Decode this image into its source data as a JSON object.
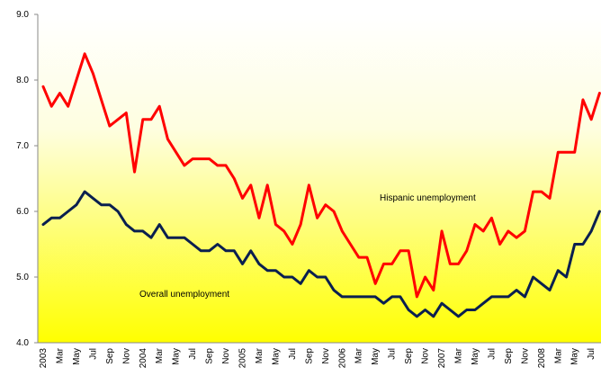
{
  "chart_data": {
    "type": "line",
    "categories": [
      "2003",
      null,
      "Mar",
      null,
      "May",
      null,
      "Jul",
      null,
      "Sep",
      null,
      "Nov",
      null,
      "2004",
      null,
      "Mar",
      null,
      "May",
      null,
      "Jul",
      null,
      "Sep",
      null,
      "Nov",
      null,
      "2005",
      null,
      "Mar",
      null,
      "May",
      null,
      "Jul",
      null,
      "Sep",
      null,
      "Nov",
      null,
      "2006",
      null,
      "Mar",
      null,
      "May",
      null,
      "Jul",
      null,
      "Sep",
      null,
      "Nov",
      null,
      "2007",
      null,
      "Mar",
      null,
      "May",
      null,
      "Jul",
      null,
      "Sep",
      null,
      "Nov",
      null,
      "2008",
      null,
      "Mar",
      null,
      "May",
      null,
      "Jul",
      null
    ],
    "series": [
      {
        "name": "Hispanic unemployment",
        "color": "#ff0000",
        "values": [
          7.9,
          7.6,
          7.8,
          7.6,
          8.0,
          8.4,
          8.1,
          7.7,
          7.3,
          7.4,
          7.5,
          6.6,
          7.4,
          7.4,
          7.6,
          7.1,
          6.9,
          6.7,
          6.8,
          6.8,
          6.8,
          6.7,
          6.7,
          6.5,
          6.2,
          6.4,
          5.9,
          6.4,
          5.8,
          5.7,
          5.5,
          5.8,
          6.4,
          5.9,
          6.1,
          6.0,
          5.7,
          5.5,
          5.3,
          5.3,
          4.9,
          5.2,
          5.2,
          5.4,
          5.4,
          4.7,
          5.0,
          4.8,
          5.7,
          5.2,
          5.2,
          5.4,
          5.8,
          5.7,
          5.9,
          5.5,
          5.7,
          5.6,
          5.7,
          6.3,
          6.3,
          6.2,
          6.9,
          6.9,
          6.9,
          7.7,
          7.4,
          7.8
        ]
      },
      {
        "name": "Overall unemployment",
        "color": "#0a1f4f",
        "values": [
          5.8,
          5.9,
          5.9,
          6.0,
          6.1,
          6.3,
          6.2,
          6.1,
          6.1,
          6.0,
          5.8,
          5.7,
          5.7,
          5.6,
          5.8,
          5.6,
          5.6,
          5.6,
          5.5,
          5.4,
          5.4,
          5.5,
          5.4,
          5.4,
          5.2,
          5.4,
          5.2,
          5.1,
          5.1,
          5.0,
          5.0,
          4.9,
          5.1,
          5.0,
          5.0,
          4.8,
          4.7,
          4.7,
          4.7,
          4.7,
          4.7,
          4.6,
          4.7,
          4.7,
          4.5,
          4.4,
          4.5,
          4.4,
          4.6,
          4.5,
          4.4,
          4.5,
          4.5,
          4.6,
          4.7,
          4.7,
          4.7,
          4.8,
          4.7,
          5.0,
          4.9,
          4.8,
          5.1,
          5.0,
          5.5,
          5.5,
          5.7,
          6.0
        ]
      }
    ],
    "ylim": [
      4.0,
      9.0
    ],
    "yticks": [
      {
        "value": 4,
        "label": "4.0"
      },
      {
        "value": 5,
        "label": "5.0"
      },
      {
        "value": 6,
        "label": "6.0"
      },
      {
        "value": 7,
        "label": "7.0"
      },
      {
        "value": 8,
        "label": "8.0"
      },
      {
        "value": 9,
        "label": "9.0"
      }
    ],
    "grid": false
  }
}
